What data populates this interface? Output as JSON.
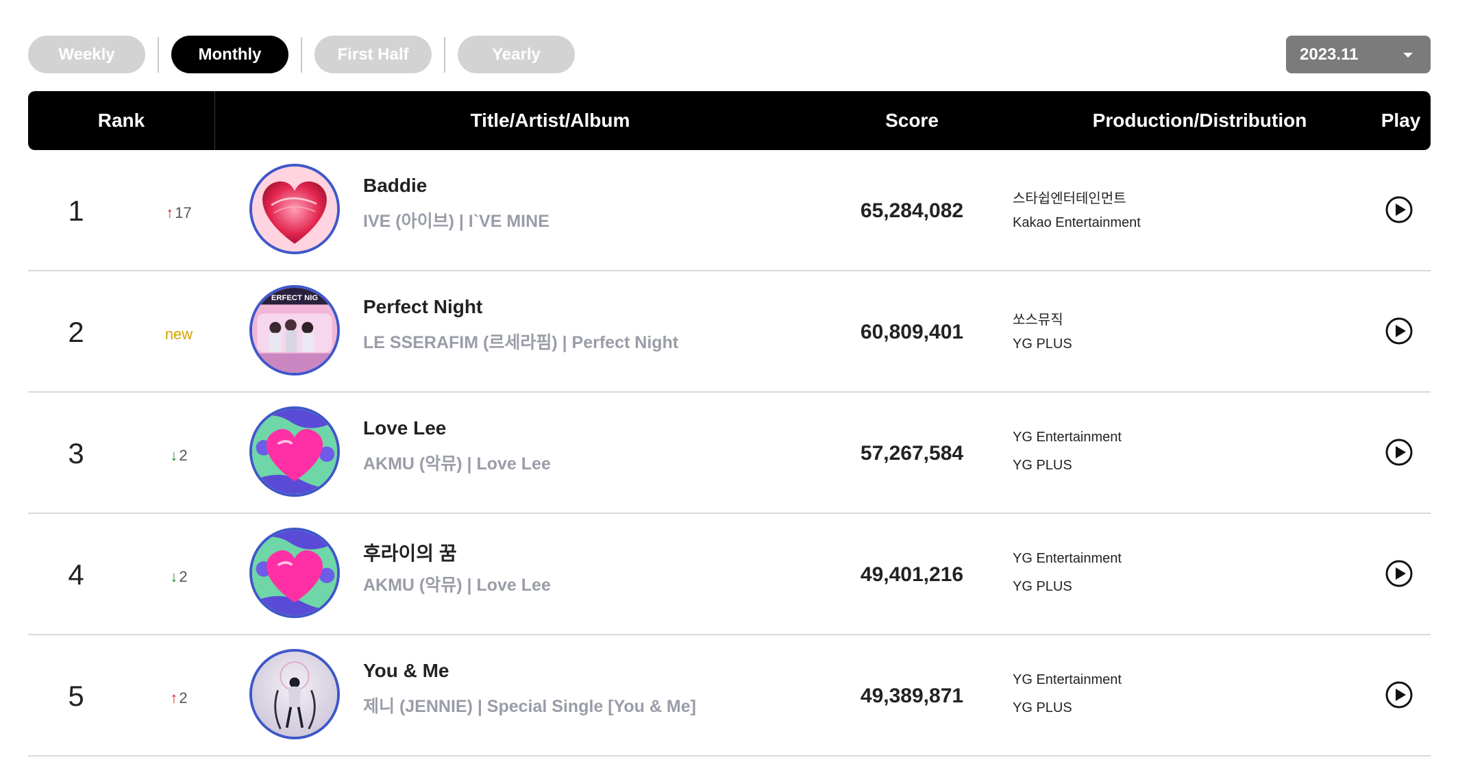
{
  "tabs": [
    {
      "label": "Weekly",
      "active": false
    },
    {
      "label": "Monthly",
      "active": true
    },
    {
      "label": "First Half",
      "active": false
    },
    {
      "label": "Yearly",
      "active": false
    }
  ],
  "period_select": {
    "value": "2023.11"
  },
  "table_header": {
    "rank": "Rank",
    "title_artist_album": "Title/Artist/Album",
    "score": "Score",
    "production_distribution": "Production/Distribution",
    "play": "Play"
  },
  "rows": [
    {
      "rank": "1",
      "change_type": "up",
      "change_value": "17",
      "title": "Baddie",
      "artist_album": "IVE (아이브) | I`VE MINE",
      "score": "65,284,082",
      "production": "스타쉽엔터테인먼트",
      "distribution": "Kakao Entertainment"
    },
    {
      "rank": "2",
      "change_type": "new",
      "change_value": "new",
      "title": "Perfect Night",
      "artist_album": "LE SSERAFIM (르세라핌) | Perfect Night",
      "score": "60,809,401",
      "production": "쏘스뮤직",
      "distribution": "YG PLUS"
    },
    {
      "rank": "3",
      "change_type": "down",
      "change_value": "2",
      "title": "Love Lee",
      "artist_album": "AKMU (악뮤) | Love Lee",
      "score": "57,267,584",
      "production": "YG Entertainment",
      "distribution": "YG PLUS"
    },
    {
      "rank": "4",
      "change_type": "down",
      "change_value": "2",
      "title": "후라이의 꿈",
      "artist_album": "AKMU (악뮤) | Love Lee",
      "score": "49,401,216",
      "production": "YG Entertainment",
      "distribution": "YG PLUS"
    },
    {
      "rank": "5",
      "change_type": "up",
      "change_value": "2",
      "title": "You & Me",
      "artist_album": "제니 (JENNIE) | Special Single [You & Me]",
      "score": "49,389,871",
      "production": "YG Entertainment",
      "distribution": "YG PLUS"
    }
  ],
  "icons": {
    "up_arrow": "↑",
    "down_arrow": "↓",
    "play": "play-circle-icon",
    "caret": "chevron-down-icon"
  },
  "colors": {
    "up": "#e02020",
    "down": "#1a8a2a",
    "new": "#d4a400",
    "header_bg": "#000000",
    "inactive_tab": "#d3d3d3",
    "select_bg": "#7b7b7b"
  }
}
